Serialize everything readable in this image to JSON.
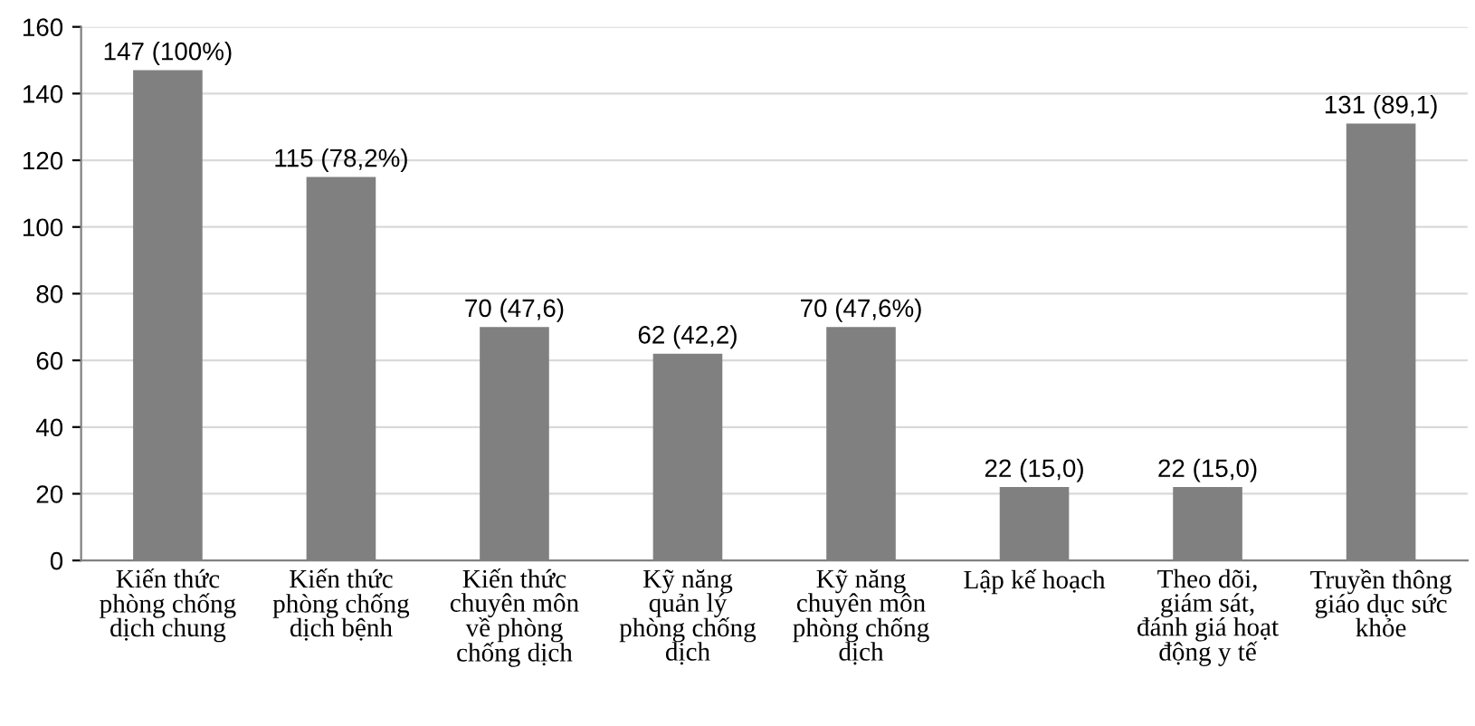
{
  "chart_data": {
    "type": "bar",
    "categories": [
      "Kiến thức\nphòng chống\ndịch chung",
      "Kiến thức\nphòng chống\ndịch bệnh",
      "Kiến thức\nchuyên môn\nvề phòng\nchống dịch",
      "Kỹ năng\nquản lý\nphòng chống\ndịch",
      "Kỹ năng\nchuyên môn\nphòng chống\ndịch",
      "Lập kế hoạch",
      "Theo dõi,\ngiám sát,\nđánh giá hoạt\nđộng y tế",
      "Truyền thông\ngiáo dục sức\nkhỏe"
    ],
    "values": [
      147,
      115,
      70,
      62,
      70,
      22,
      22,
      131
    ],
    "value_labels": [
      "147 (100%)",
      "115 (78,2%)",
      "70 (47,6)",
      "62 (42,2)",
      "70 (47,6%)",
      "22 (15,0)",
      "22 (15,0)",
      "131 (89,1)"
    ],
    "color": "#808080",
    "ylim": [
      0,
      160
    ],
    "yticks": [
      0,
      20,
      40,
      60,
      80,
      100,
      120,
      140,
      160
    ],
    "grid": "y"
  }
}
